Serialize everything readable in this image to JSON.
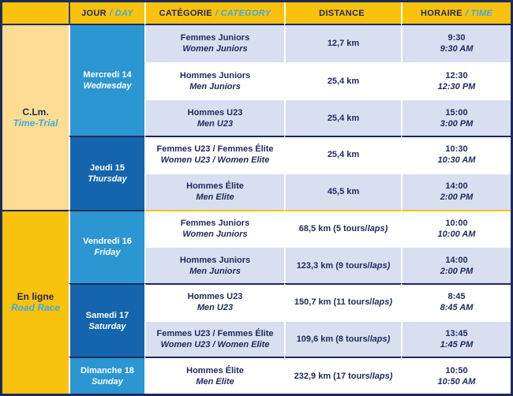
{
  "header": {
    "jour_fr": "JOUR",
    "jour_en": "/ DAY",
    "categorie_fr": "CATÉGORIE",
    "categorie_en": "/ CATEGORY",
    "distance_fr": "DISTANCE",
    "distance_en": "",
    "horaire_fr": "HORAIRE",
    "horaire_en": "/ TIME"
  },
  "groups": [
    {
      "fr": "C.Lm.",
      "en": "Time-Trial"
    },
    {
      "fr": "En ligne",
      "en": "Road Race"
    }
  ],
  "days": [
    {
      "fr": "Mercredi 14",
      "en": "Wednesday"
    },
    {
      "fr": "Jeudi 15",
      "en": "Thursday"
    },
    {
      "fr": "Vendredi 16",
      "en": "Friday"
    },
    {
      "fr": "Samedi 17",
      "en": "Saturday"
    },
    {
      "fr": "Dimanche 18",
      "en": "Sunday"
    }
  ],
  "rows": [
    {
      "cat_fr": "Femmes Juniors",
      "cat_en": "Women Juniors",
      "dist": "12,7 km",
      "dist_laps": "",
      "time_fr": "9:30",
      "time_en": "9:30 AM"
    },
    {
      "cat_fr": "Hommes Juniors",
      "cat_en": "Men Juniors",
      "dist": "25,4 km",
      "dist_laps": "",
      "time_fr": "12:30",
      "time_en": "12:30 PM"
    },
    {
      "cat_fr": "Hommes U23",
      "cat_en": "Men U23",
      "dist": "25,4 km",
      "dist_laps": "",
      "time_fr": "15:00",
      "time_en": "3:00 PM"
    },
    {
      "cat_fr": "Femmes U23 / Femmes Élite",
      "cat_en": "Women U23 / Women Elite",
      "dist": "25,4 km",
      "dist_laps": "",
      "time_fr": "10:30",
      "time_en": "10:30 AM"
    },
    {
      "cat_fr": "Hommes Élite",
      "cat_en": "Men Elite",
      "dist": "45,5 km",
      "dist_laps": "",
      "time_fr": "14:00",
      "time_en": "2:00 PM"
    },
    {
      "cat_fr": "Femmes Juniors",
      "cat_en": "Women Juniors",
      "dist": "68,5 km (5 tours/",
      "dist_laps": "laps)",
      "time_fr": "10:00",
      "time_en": "10:00 AM"
    },
    {
      "cat_fr": "Hommes Juniors",
      "cat_en": "Men Juniors",
      "dist": "123,3 km (9 tours/",
      "dist_laps": "laps)",
      "time_fr": "14:00",
      "time_en": "2:00 PM"
    },
    {
      "cat_fr": "Hommes U23",
      "cat_en": "Men U23",
      "dist": "150,7 km (11 tours/",
      "dist_laps": "laps)",
      "time_fr": "8:45",
      "time_en": "8:45 AM"
    },
    {
      "cat_fr": "Femmes U23 / Femmes Élite",
      "cat_en": "Women U23 / Women Elite",
      "dist": "109,6 km (8 tours/",
      "dist_laps": "laps)",
      "time_fr": "13:45",
      "time_en": "1:45 PM"
    },
    {
      "cat_fr": "Hommes Élite",
      "cat_en": "Men Elite",
      "dist": "232,9 km (17 tours/",
      "dist_laps": "laps)",
      "time_fr": "10:50",
      "time_en": "10:50 AM"
    }
  ],
  "colors": {
    "navy": "#1E2A5A",
    "gold": "#F8C20D",
    "pale_yellow": "#FBDC92",
    "light_blue_text": "#3FA9E0",
    "day_light_blue": "#2B96D2",
    "day_dark_blue": "#1465AD",
    "row_lavender": "#D7DFF1"
  }
}
